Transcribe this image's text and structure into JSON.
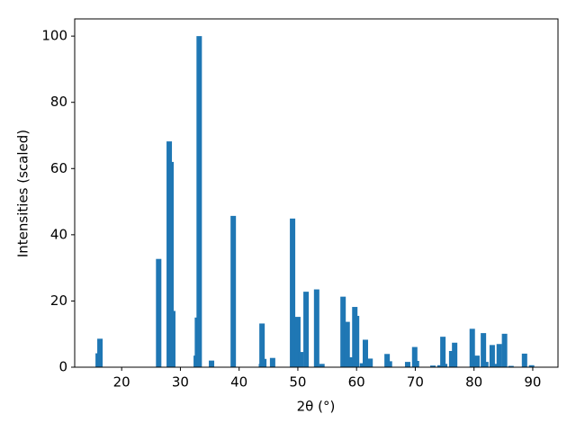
{
  "chart_data": {
    "type": "bar",
    "xlabel": "2θ (°)",
    "ylabel": "Intensities (scaled)",
    "x": [
      16.0,
      16.3,
      26.3,
      28.1,
      28.4,
      28.7,
      32.7,
      32.9,
      33.2,
      35.3,
      39.0,
      43.8,
      43.9,
      44.2,
      45.7,
      49.1,
      50.0,
      50.5,
      51.4,
      53.2,
      54.1,
      57.7,
      58.4,
      58.9,
      59.7,
      60.0,
      61.0,
      61.5,
      62.3,
      65.2,
      65.6,
      68.7,
      69.9,
      70.2,
      73.0,
      74.2,
      74.7,
      75.0,
      76.2,
      76.7,
      79.7,
      80.5,
      81.6,
      82.0,
      83.1,
      83.6,
      84.3,
      85.2,
      86.3,
      88.6,
      89.8
    ],
    "values": [
      4.2,
      8.6,
      32.7,
      68.2,
      62,
      17,
      3.5,
      15,
      100,
      2,
      45.7,
      1,
      13.2,
      2.5,
      2.8,
      44.9,
      15.2,
      4.6,
      22.8,
      23.5,
      1,
      21.3,
      13.7,
      3,
      18.2,
      15.5,
      1.2,
      8.3,
      2.6,
      4,
      1.8,
      1.6,
      6.1,
      1.9,
      0.5,
      0.6,
      9.2,
      1,
      4.9,
      7.4,
      11.6,
      3.5,
      10.3,
      1.6,
      6.7,
      1,
      7,
      10.1,
      0.4,
      4.1,
      0.6
    ],
    "color": "#1f77b4",
    "xlim": [
      12,
      94.3
    ],
    "ylim": [
      0,
      105.2
    ],
    "xticks": [
      20,
      30,
      40,
      50,
      60,
      70,
      80,
      90
    ],
    "yticks": [
      0,
      20,
      40,
      60,
      80,
      100
    ]
  }
}
